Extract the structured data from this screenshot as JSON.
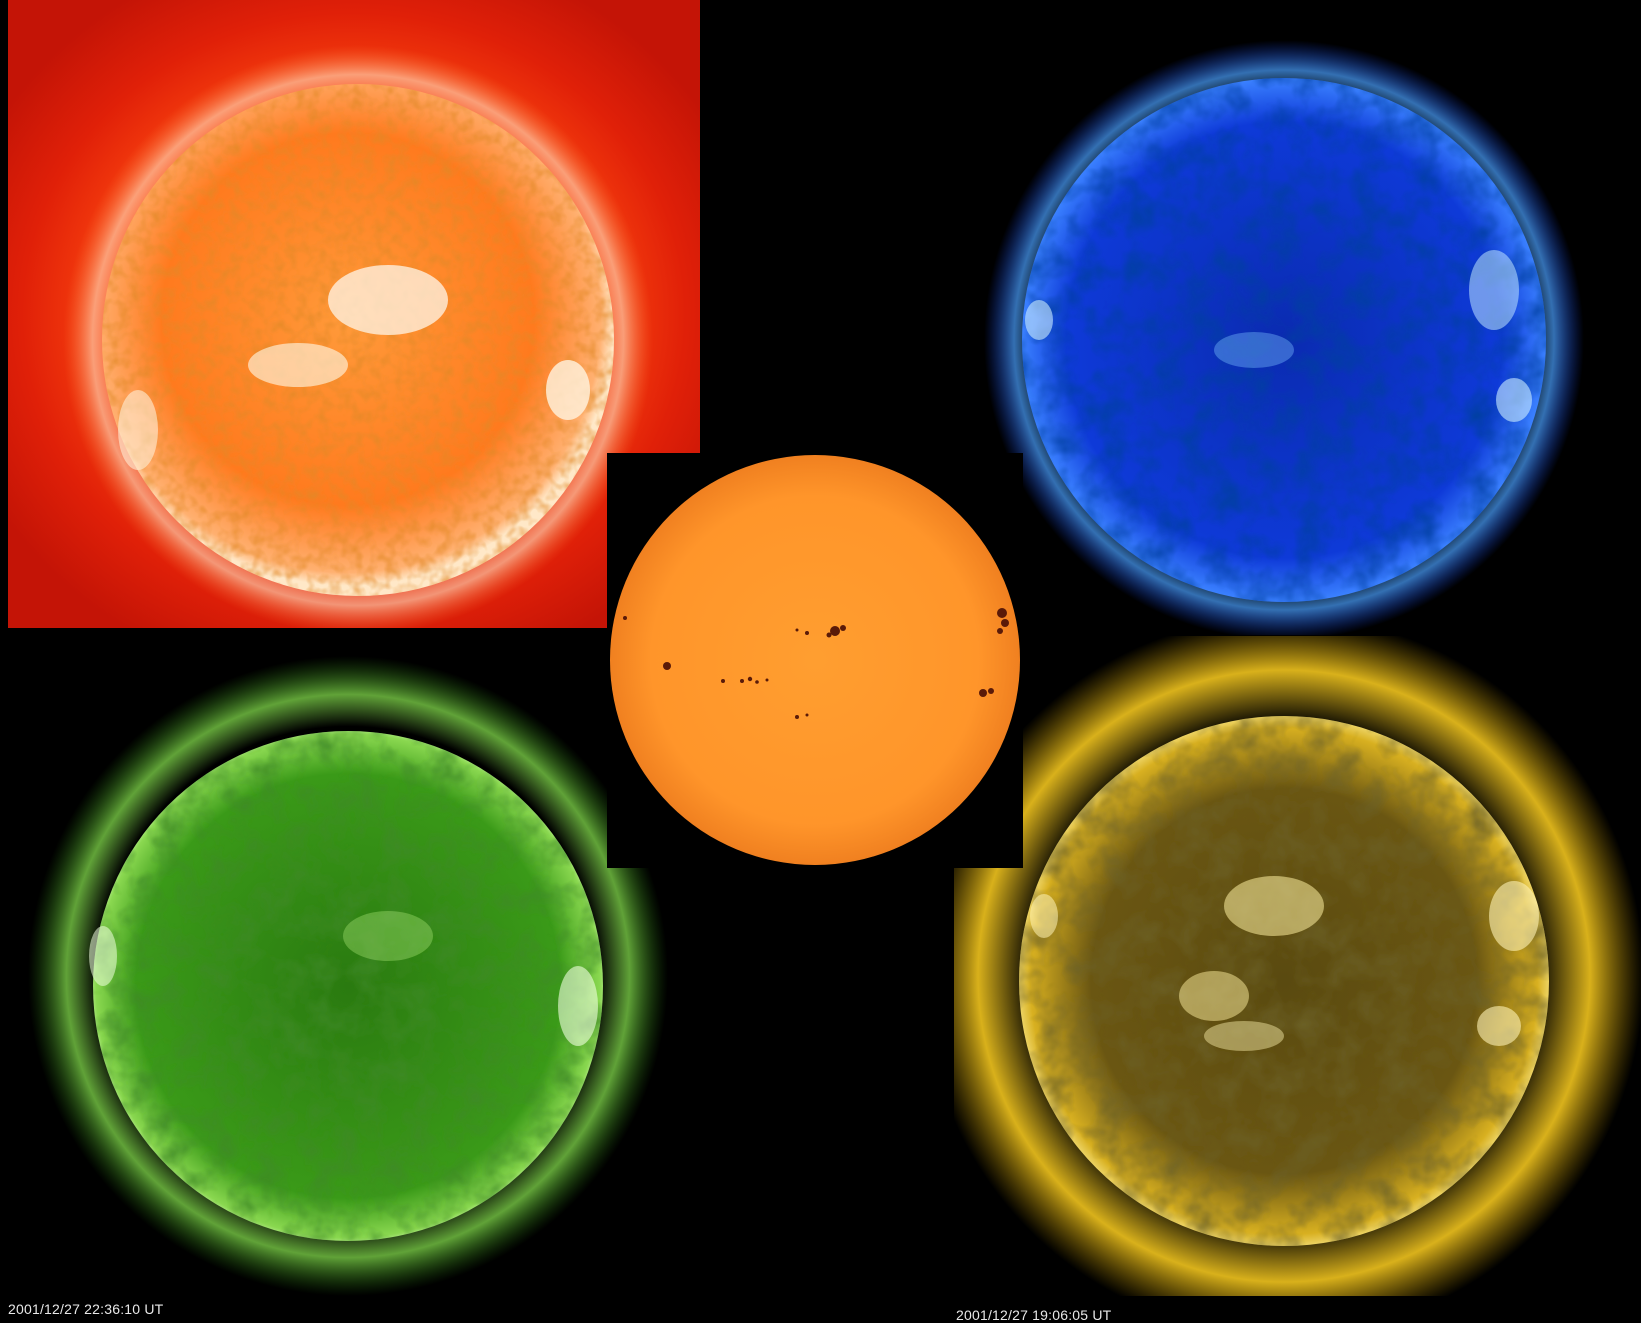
{
  "images": {
    "red": {
      "icon": "sun-euv-red",
      "color": "#ff6a10"
    },
    "blue": {
      "icon": "sun-euv-blue",
      "color": "#1a3cff"
    },
    "green": {
      "icon": "sun-euv-green",
      "color": "#2f9a12"
    },
    "yellow": {
      "icon": "sun-euv-yellow",
      "color": "#e8b800"
    },
    "center": {
      "icon": "sun-visible-white-light",
      "color": "#ff9a2e"
    }
  },
  "timestamps": {
    "left": "2001/12/27 22:36:10 UT",
    "right": "2001/12/27 19:06:05 UT"
  }
}
